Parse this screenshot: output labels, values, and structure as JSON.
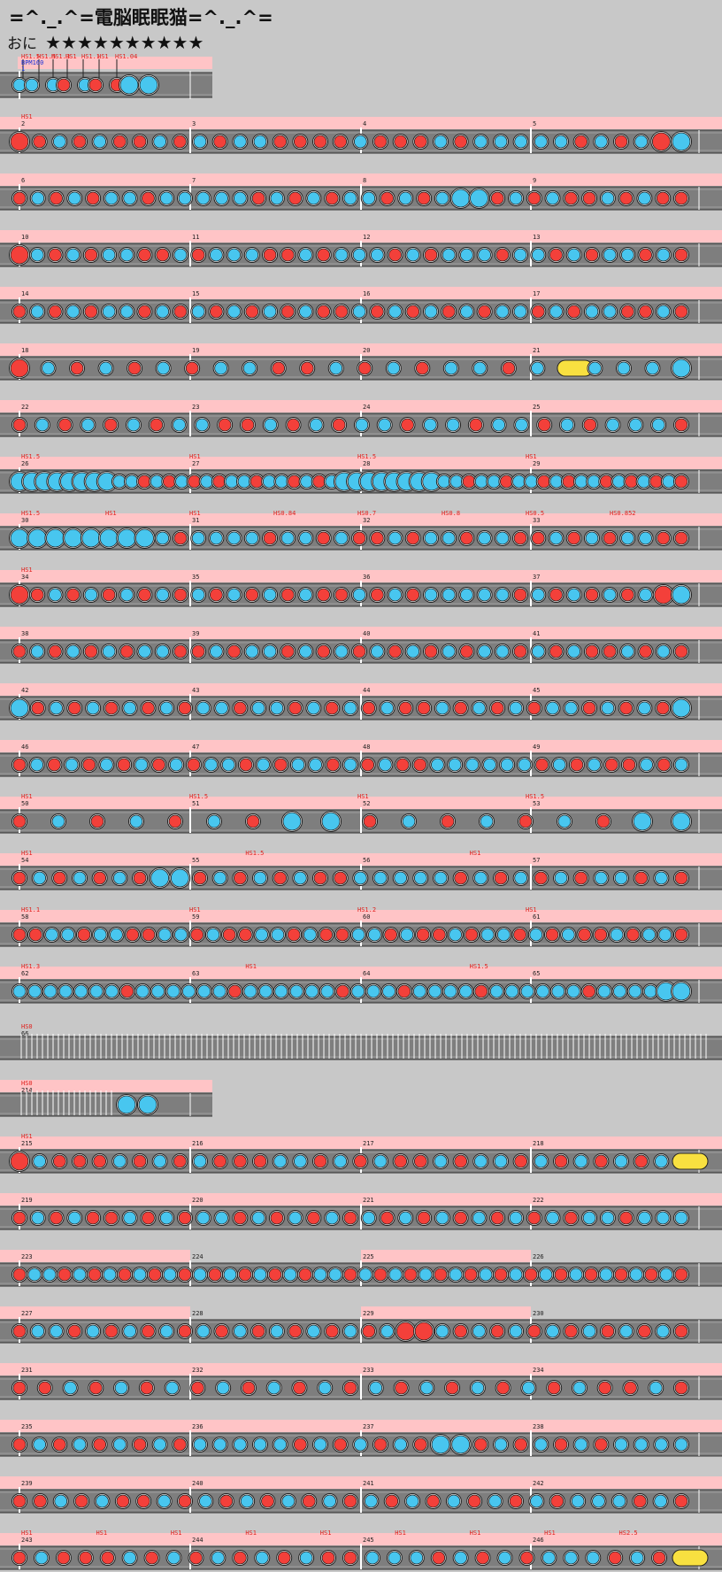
{
  "song": {
    "title": "=^._.^=電脳眠眠猫=^._.^=",
    "difficulty_label": "おに",
    "stars": "★★★★★★★★★★"
  },
  "colors": {
    "background": "#c8c8c8",
    "lane": "#7e7e7e",
    "lane_line": "#ffffff",
    "scroll_band": "#ffc4c6",
    "don": "#f3403a",
    "ka": "#48c6ef",
    "drumroll": "#f8e040",
    "label_red": "#e0201c",
    "label_blue": "#1a32d8"
  },
  "first_row": {
    "labels": [
      "HS1.5",
      "HS1.5",
      "HS1.3",
      "HS1",
      "HS1.1",
      "HS1",
      "HS1.04"
    ],
    "bpm": "BPM160",
    "measure": "1",
    "notes": [
      "ka",
      "ka",
      "ka",
      "don",
      "ka",
      "don",
      "don",
      "KA",
      "KA"
    ]
  },
  "rows": [
    {
      "measures": [
        "2",
        "3",
        "4",
        "5"
      ],
      "speed": "HS1",
      "band": "full",
      "notes": "DdkdkddkdkdkkddddkdddkdkkkkkdkdkDK"
    },
    {
      "measures": [
        "6",
        "7",
        "8",
        "9"
      ],
      "band": "full",
      "notes": "dkdkdkkdkkkkkdkdkdkkdkdkKKdkdkddkdkdd"
    },
    {
      "measures": [
        "10",
        "11",
        "12",
        "13"
      ],
      "band": "full",
      "notes": "Dkdkdkkddkdkkkddkdkkkdkdkkkdkkdkdkkdkd"
    },
    {
      "measures": [
        "14",
        "15",
        "16",
        "17"
      ],
      "band": "full",
      "notes": "dkdkdkkdkdkdkdkdkddkdkdkdkdkkdkdkkddkd"
    },
    {
      "measures": [
        "18",
        "19",
        "20",
        "21"
      ],
      "band": "full",
      "notes": "DkdkdkdkkddkdkdkkdkrkkkK"
    },
    {
      "measures": [
        "22",
        "23",
        "24",
        "25"
      ],
      "band": "full",
      "notes": "dkdkdkdkkddkdkdkkdkkdkkdkdkkkd"
    },
    {
      "measures": [
        "26",
        "27",
        "28",
        "29"
      ],
      "band": "scroll",
      "labels": [
        "HS1.5",
        "HS1",
        "HS1.5",
        "HS1"
      ],
      "notes": "KKKKKKKKkkdkdkdkdkkdkkdkdkKKKKKKKKkkdkkdkkdkdkkdkdkdkd"
    },
    {
      "measures": [
        "30",
        "31",
        "32",
        "33"
      ],
      "band": "scroll",
      "labels": [
        "HS1.5",
        "HS1",
        "HS1",
        "HS0.84",
        "HS0.7",
        "HS0.8",
        "HS0.5",
        "HS0.852"
      ],
      "notes": "KKKKKKKKkdkkkkdkkdkddkdkkdkkddkdkdkkdd"
    },
    {
      "measures": [
        "34",
        "35",
        "36",
        "37"
      ],
      "speed": "HS1",
      "band": "full",
      "notes": "DdkdkdkdkdkdkdkdkddkdkdkkkkkdkdkdkdkDK"
    },
    {
      "measures": [
        "38",
        "39",
        "40",
        "41"
      ],
      "band": "full",
      "notes": "dkdkdkdkkddkdkkdkdkdkdkdkdkkdkdkddkdkd"
    },
    {
      "measures": [
        "42",
        "43",
        "44",
        "45"
      ],
      "band": "full",
      "notes": "KdkdkdkdkdkkdkkdkdkdkddkdkdkdkkdkdkdK"
    },
    {
      "measures": [
        "46",
        "47",
        "48",
        "49"
      ],
      "band": "full",
      "notes": "dkdkdkdkdkdkkdkdkkdkdkddkkkkkkdkdkddkdk"
    },
    {
      "measures": [
        "50",
        "51",
        "52",
        "53"
      ],
      "band": "scroll",
      "labels": [
        "HS1",
        "HS1.5",
        "HS1",
        "HS1.5"
      ],
      "notes": "dkdkdkdKKdkdkdkdKK"
    },
    {
      "measures": [
        "54",
        "55",
        "56",
        "57"
      ],
      "band": "scroll",
      "labels": [
        "HS1",
        "HS1.5",
        "HS1"
      ],
      "notes": "dkdkdkdKKdkdkdkddkkkkkdkdkdkdkkdkd"
    },
    {
      "measures": [
        "58",
        "59",
        "60",
        "61"
      ],
      "band": "scroll",
      "labels": [
        "HS1.1",
        "HS1",
        "HS1.2",
        "HS1"
      ],
      "notes": "ddkkdkkddkkdkddkkdkddkkdkddkdkkdkdkddkdkkd"
    },
    {
      "measures": [
        "62",
        "63",
        "64",
        "65"
      ],
      "band": "scroll",
      "labels": [
        "HS1.3",
        "HS1",
        "HS1.5"
      ],
      "notes": "kkkkkkkdkkkkkkdkkkkkkdkkkdkkkkdkkkkkkdkkkkKK"
    },
    {
      "measures": [
        "66"
      ],
      "type": "dense",
      "labels": [
        "HS0"
      ],
      "notes": "|"
    },
    {
      "measures": [
        "214"
      ],
      "type": "dense2",
      "labels": [
        "HS0"
      ],
      "notes": "KK"
    },
    {
      "measures": [
        "215",
        "216",
        "217",
        "218"
      ],
      "speed": "HS1",
      "band": "full",
      "notes": "DkdddkdkdkdddkkdkdkddkdkkdkdkdkdkR"
    },
    {
      "measures": [
        "219",
        "220",
        "221",
        "222"
      ],
      "band": "full",
      "notes": "dkdkddkdkdkkdkdkdkdkdkdkdkdkdkdkkdkkk"
    },
    {
      "measures": [
        "223",
        "224",
        "225",
        "226"
      ],
      "band": "split",
      "notes": "dkkdkdkdkdkdkdkdkdkdkkdkdkdkdkdkdkdkdkdkdkdkd"
    },
    {
      "measures": [
        "227",
        "228",
        "229",
        "230"
      ],
      "band": "split",
      "notes": "dkkdkdkdkdkdkdkdkdkdkDDkdkdkdkdkdkdkd"
    },
    {
      "measures": [
        "231",
        "232",
        "233",
        "234"
      ],
      "band": "full",
      "notes": "ddkdkdkdkdkdkdkdkdkdkdkddkd"
    },
    {
      "measures": [
        "235",
        "236",
        "237",
        "238"
      ],
      "band": "full",
      "notes": "dkdkdkdkdkkkkkdkdkdkdKKdkdkdkdkkkk"
    },
    {
      "measures": [
        "239",
        "240",
        "241",
        "242"
      ],
      "band": "full",
      "notes": "ddkdkddkdkdkdkdkdkdkdkdkdkdkkkdkd"
    },
    {
      "measures": [
        "243",
        "244",
        "245",
        "246"
      ],
      "band": "scroll",
      "labels": [
        "HS1",
        "HS1",
        "HS1",
        "HS1",
        "HS1",
        "HS1",
        "HS1",
        "HS1",
        "HS2.5"
      ],
      "notes": "dkdddkdkdkdkdkddkkkdkdkdkkkdkdR"
    }
  ]
}
